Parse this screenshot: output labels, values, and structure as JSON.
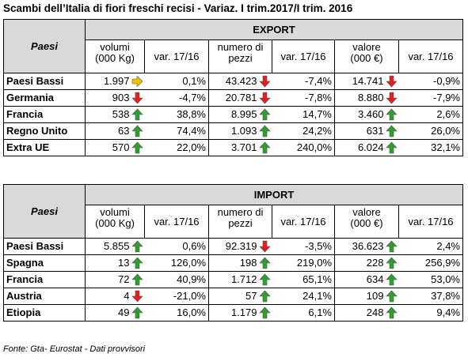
{
  "title": "Scambi dell’Italia di fiori freschi recisi - Variaz. I trim.2017/I trim. 2016",
  "footer": "Fonte: Gta- Eurostat -  Dati provvisori",
  "colors": {
    "up": "#2e9e2e",
    "down": "#e02020",
    "flat": "#f5c000",
    "header_bg": "#d9d9d9"
  },
  "export": {
    "section_label": "EXPORT",
    "paesi_label": "Paesi",
    "col_headers": [
      "volumi\n(000 Kg)",
      "var. 17/16",
      "numero di\npezzi",
      "var. 17/16",
      "valore\n(000 €)",
      "var. 17/16"
    ],
    "rows": [
      {
        "country": "Paesi Bassi",
        "vol": "1.997",
        "vol_icon": "flat",
        "vol_var": "0,1%",
        "pez": "43.423",
        "pez_icon": "down",
        "pez_var": "-7,4%",
        "val": "14.741",
        "val_icon": "down",
        "val_var": "-0,9%"
      },
      {
        "country": "Germania",
        "vol": "903",
        "vol_icon": "down",
        "vol_var": "-4,7%",
        "pez": "20.781",
        "pez_icon": "down",
        "pez_var": "-7,8%",
        "val": "8.880",
        "val_icon": "down",
        "val_var": "-7,9%"
      },
      {
        "country": "Francia",
        "vol": "538",
        "vol_icon": "up",
        "vol_var": "38,8%",
        "pez": "8.995",
        "pez_icon": "up",
        "pez_var": "14,7%",
        "val": "3.460",
        "val_icon": "up",
        "val_var": "2,6%"
      },
      {
        "country": "Regno Unito",
        "vol": "63",
        "vol_icon": "up",
        "vol_var": "74,4%",
        "pez": "1.093",
        "pez_icon": "up",
        "pez_var": "24,2%",
        "val": "631",
        "val_icon": "up",
        "val_var": "26,0%"
      },
      {
        "country": "Extra UE",
        "vol": "570",
        "vol_icon": "up",
        "vol_var": "22,0%",
        "pez": "3.701",
        "pez_icon": "up",
        "pez_var": "240,0%",
        "val": "6.024",
        "val_icon": "up",
        "val_var": "32,1%"
      }
    ]
  },
  "import": {
    "section_label": "IMPORT",
    "paesi_label": "Paesi",
    "col_headers": [
      "volumi\n(000 Kg)",
      "var. 17/16",
      "numero di\npezzi",
      "var. 17/16",
      "valore\n(000 €)",
      "var. 17/16"
    ],
    "rows": [
      {
        "country": "Paesi Bassi",
        "vol": "5.855",
        "vol_icon": "up",
        "vol_var": "0,6%",
        "pez": "92.319",
        "pez_icon": "down",
        "pez_var": "-3,5%",
        "val": "36.623",
        "val_icon": "up",
        "val_var": "2,4%"
      },
      {
        "country": "Spagna",
        "vol": "13",
        "vol_icon": "up",
        "vol_var": "126,0%",
        "pez": "198",
        "pez_icon": "up",
        "pez_var": "219,0%",
        "val": "228",
        "val_icon": "up",
        "val_var": "256,9%"
      },
      {
        "country": "Francia",
        "vol": "72",
        "vol_icon": "up",
        "vol_var": "40,9%",
        "pez": "1.712",
        "pez_icon": "up",
        "pez_var": "65,1%",
        "val": "634",
        "val_icon": "up",
        "val_var": "53,0%"
      },
      {
        "country": "Austria",
        "vol": "4",
        "vol_icon": "down",
        "vol_var": "-21,0%",
        "pez": "57",
        "pez_icon": "up",
        "pez_var": "24,1%",
        "val": "109",
        "val_icon": "up",
        "val_var": "37,8%"
      },
      {
        "country": "Etiopia",
        "vol": "49",
        "vol_icon": "up",
        "vol_var": "16,0%",
        "pez": "1.179",
        "pez_icon": "up",
        "pez_var": "6,1%",
        "val": "248",
        "val_icon": "up",
        "val_var": "9,4%"
      }
    ]
  }
}
